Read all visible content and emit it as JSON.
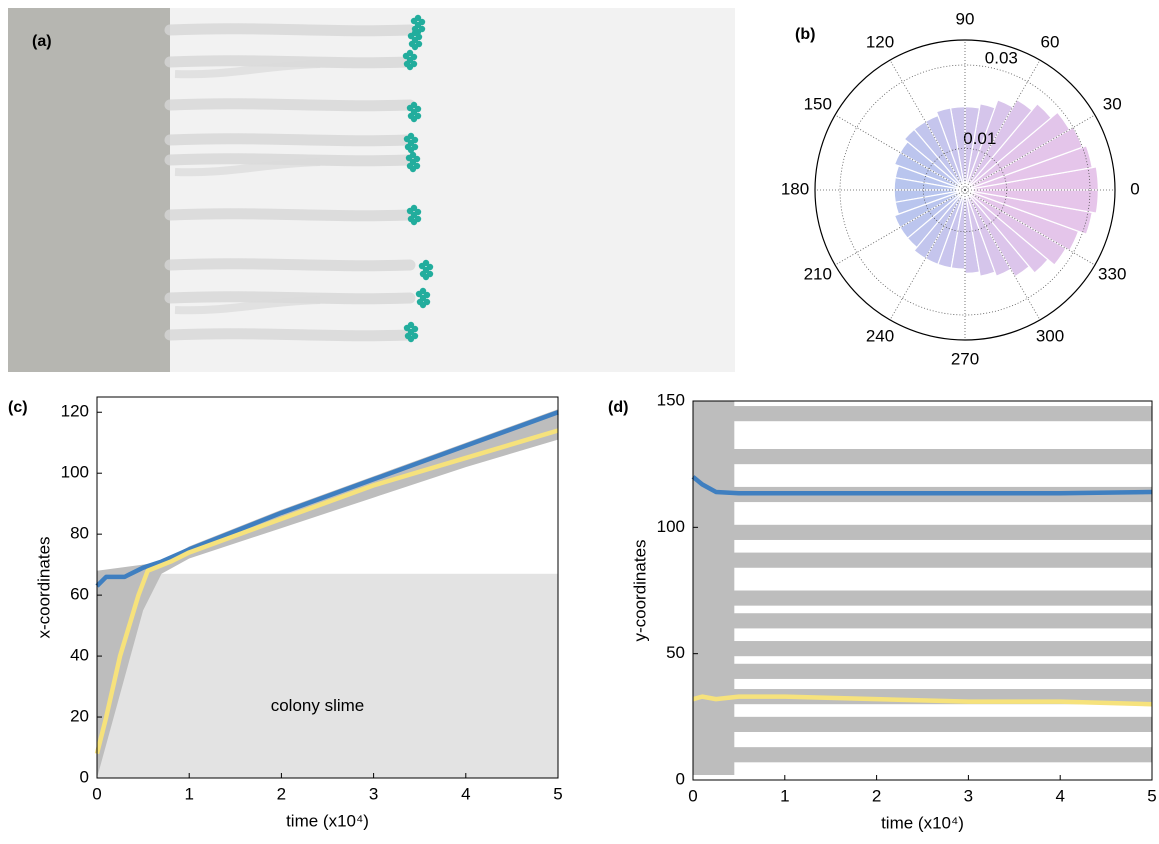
{
  "panel_a": {
    "label": "(a)"
  },
  "chart_data": [
    {
      "type": "polar",
      "label": "(b)",
      "rlim": [
        0,
        0.036
      ],
      "rticks": [
        0.01,
        0.03
      ],
      "thetaticks": [
        0,
        30,
        60,
        90,
        120,
        150,
        180,
        210,
        240,
        270,
        300,
        330
      ],
      "bin_width": 10,
      "values": [
        0.032,
        0.031,
        0.03,
        0.029,
        0.027,
        0.025,
        0.023,
        0.021,
        0.02,
        0.02,
        0.02,
        0.019,
        0.019,
        0.019,
        0.018,
        0.018,
        0.017,
        0.017,
        0.017,
        0.017,
        0.018,
        0.018,
        0.018,
        0.019,
        0.019,
        0.019,
        0.019,
        0.02,
        0.021,
        0.022,
        0.024,
        0.026,
        0.028,
        0.029,
        0.031,
        0.032
      ],
      "colormap": [
        "#b8c5ee",
        "#e6c5ea"
      ]
    },
    {
      "type": "line",
      "label": "(c)",
      "xlabel": "time (x10⁴)",
      "ylabel": "x-coordinates",
      "xlim": [
        0,
        5
      ],
      "ylim": [
        0,
        125
      ],
      "xticks": [
        0,
        1,
        2,
        3,
        4,
        5
      ],
      "yticks": [
        0,
        20,
        40,
        60,
        80,
        100,
        120
      ],
      "shade": {
        "top": 67,
        "label": "colony slime",
        "color": "#e3e3e3"
      },
      "band": {
        "color": "#bdbdbd",
        "x": [
          0,
          0.5,
          0.7,
          1,
          2,
          3,
          4,
          5
        ],
        "lower": [
          0,
          55,
          67,
          72,
          82,
          92,
          102,
          111
        ],
        "upper": [
          68,
          70,
          71,
          76,
          88,
          99,
          110,
          121
        ]
      },
      "series": [
        {
          "color": "#3f7fc0",
          "x": [
            0,
            0.1,
            0.3,
            0.5,
            0.7,
            1,
            2,
            3,
            4,
            5
          ],
          "values": [
            63,
            66,
            66,
            69,
            71,
            75,
            87,
            98,
            109,
            120
          ]
        },
        {
          "color": "#f6e27c",
          "x": [
            0,
            0.1,
            0.25,
            0.45,
            0.55,
            0.8,
            1,
            2,
            3,
            4,
            5
          ],
          "values": [
            8,
            20,
            40,
            60,
            68,
            71,
            74,
            85,
            96,
            105,
            114
          ]
        }
      ]
    },
    {
      "type": "line",
      "label": "(d)",
      "xlabel": "time (x10⁴)",
      "ylabel": "y-coordinates",
      "xlim": [
        0,
        5
      ],
      "ylim": [
        0,
        150
      ],
      "xticks": [
        0,
        1,
        2,
        3,
        4,
        5
      ],
      "yticks": [
        0,
        50,
        100,
        150
      ],
      "band": {
        "color": "#bdbdbd",
        "x": [
          0,
          0.45
        ],
        "lower": [
          2,
          2
        ],
        "upper": [
          150,
          150
        ]
      },
      "stripes": {
        "color": "#bdbdbd",
        "width": 6,
        "values": [
          145,
          128,
          113,
          98,
          87,
          72,
          63,
          52,
          43,
          33,
          22,
          10
        ]
      },
      "series": [
        {
          "color": "#3f7fc0",
          "x": [
            0,
            0.1,
            0.25,
            0.5,
            1,
            2,
            3,
            4,
            5
          ],
          "values": [
            120,
            117,
            114,
            113.5,
            113.5,
            113.5,
            113.5,
            113.5,
            114
          ]
        },
        {
          "color": "#f6e27c",
          "x": [
            0,
            0.1,
            0.25,
            0.5,
            1,
            2,
            3,
            4,
            5
          ],
          "values": [
            32,
            33,
            32,
            33,
            33,
            32,
            31,
            31,
            30
          ]
        }
      ]
    }
  ]
}
